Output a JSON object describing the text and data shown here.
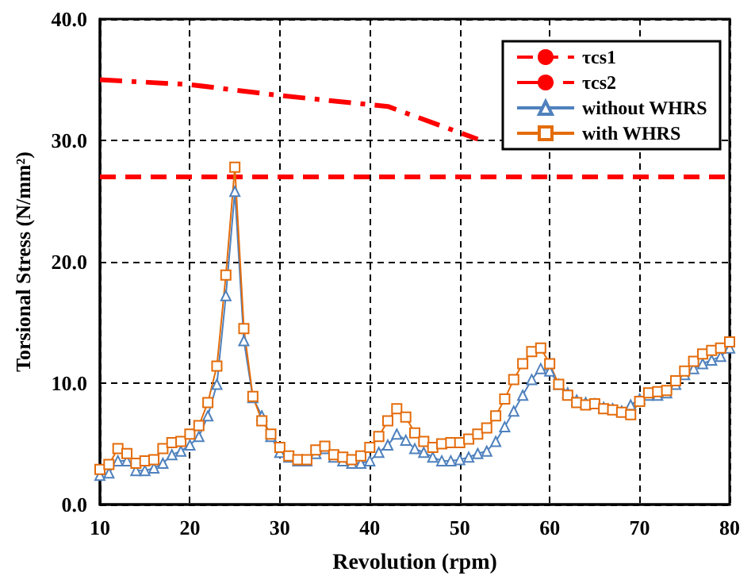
{
  "chart_data": {
    "type": "line",
    "xlabel": "Revolution (rpm)",
    "ylabel": "Torsional Stress (N/mm²)",
    "xlim": [
      10,
      80
    ],
    "xticks": [
      10,
      20,
      30,
      40,
      50,
      60,
      70,
      80
    ],
    "ylim": [
      0,
      40
    ],
    "yticks": [
      {
        "value": 0,
        "label": "0.0"
      },
      {
        "value": 10,
        "label": "10.0"
      },
      {
        "value": 20,
        "label": "20.0"
      },
      {
        "value": 30,
        "label": "30.0"
      },
      {
        "value": 40,
        "label": "40.0"
      }
    ],
    "grid": true,
    "legend": "top right",
    "series": [
      {
        "name": "τcs1",
        "color": "#ff0000",
        "marker": "none",
        "line_style": "dashed",
        "x": [
          10,
          80
        ],
        "values": [
          27,
          27
        ]
      },
      {
        "name": "τcs2",
        "color": "#ff0000",
        "marker": "none",
        "line_style": "dashdot",
        "x": [
          10,
          20,
          30,
          42,
          52
        ],
        "values": [
          35.0,
          34.6,
          33.7,
          32.8,
          30.1
        ]
      },
      {
        "name": "without WHRS",
        "color": "#4f81bd",
        "marker": "triangle",
        "line_style": "solid",
        "x": [
          10,
          11,
          12,
          13,
          14,
          15,
          16,
          17,
          18,
          19,
          20,
          21,
          22,
          23,
          24,
          25,
          26,
          27,
          28,
          29,
          30,
          31,
          32,
          33,
          34,
          35,
          36,
          37,
          38,
          39,
          40,
          41,
          42,
          43,
          44,
          45,
          46,
          47,
          48,
          49,
          50,
          51,
          52,
          53,
          54,
          55,
          56,
          57,
          58,
          59,
          60,
          61,
          62,
          63,
          64,
          65,
          66,
          67,
          68,
          69,
          70,
          71,
          72,
          73,
          74,
          75,
          76,
          77,
          78,
          79,
          80
        ],
        "values": [
          2.4,
          2.6,
          3.6,
          3.6,
          2.8,
          2.8,
          3.0,
          3.4,
          4.1,
          4.4,
          4.9,
          5.6,
          7.3,
          9.9,
          17.2,
          25.8,
          13.5,
          8.8,
          7.3,
          5.6,
          4.3,
          3.9,
          3.6,
          3.6,
          4.2,
          4.6,
          3.9,
          3.6,
          3.4,
          3.4,
          3.6,
          4.3,
          4.9,
          5.8,
          5.3,
          4.6,
          4.3,
          3.9,
          3.6,
          3.6,
          3.7,
          3.9,
          4.2,
          4.4,
          5.2,
          6.4,
          7.7,
          9.0,
          10.3,
          11.2,
          11.0,
          9.9,
          9.2,
          8.6,
          8.4,
          8.3,
          8.0,
          7.9,
          7.7,
          8.2,
          8.7,
          9.0,
          9.0,
          9.2,
          9.9,
          10.7,
          11.2,
          11.6,
          11.9,
          12.2,
          12.9
        ]
      },
      {
        "name": "with WHRS",
        "color": "#e46c0a",
        "marker": "square",
        "line_style": "solid",
        "x": [
          10,
          11,
          12,
          13,
          14,
          15,
          16,
          17,
          18,
          19,
          20,
          21,
          22,
          23,
          24,
          25,
          26,
          27,
          28,
          29,
          30,
          31,
          32,
          33,
          34,
          35,
          36,
          37,
          38,
          39,
          40,
          41,
          42,
          43,
          44,
          45,
          46,
          47,
          48,
          49,
          50,
          51,
          52,
          53,
          54,
          55,
          56,
          57,
          58,
          59,
          60,
          61,
          62,
          63,
          64,
          65,
          66,
          67,
          68,
          69,
          70,
          71,
          72,
          73,
          74,
          75,
          76,
          77,
          78,
          79,
          80
        ],
        "values": [
          2.9,
          3.3,
          4.6,
          4.2,
          3.4,
          3.6,
          3.7,
          4.6,
          5.1,
          5.2,
          5.8,
          6.5,
          8.4,
          11.4,
          18.9,
          27.8,
          14.5,
          8.9,
          6.9,
          5.8,
          4.7,
          4.0,
          3.7,
          3.7,
          4.5,
          4.8,
          4.1,
          3.9,
          3.7,
          4.0,
          4.7,
          5.6,
          6.9,
          7.9,
          7.2,
          5.9,
          5.2,
          4.7,
          5.0,
          5.1,
          5.1,
          5.4,
          5.8,
          6.3,
          7.3,
          8.7,
          10.3,
          11.6,
          12.6,
          12.9,
          11.6,
          9.9,
          9.0,
          8.4,
          8.2,
          8.3,
          7.9,
          7.8,
          7.6,
          7.4,
          8.5,
          9.2,
          9.3,
          9.4,
          10.2,
          11.0,
          11.8,
          12.4,
          12.7,
          12.9,
          13.4
        ]
      }
    ]
  }
}
